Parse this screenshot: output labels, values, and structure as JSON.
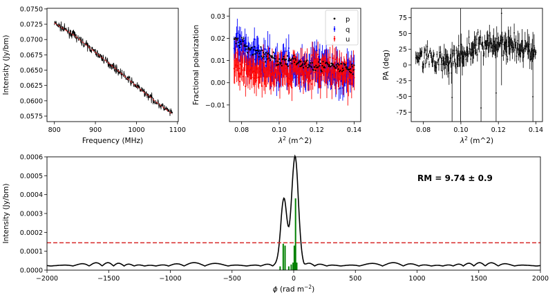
{
  "chart_data": [
    {
      "type": "line",
      "xlabel": "Frequency (MHz)",
      "ylabel": "Intensity (Jy/bm)",
      "xlim": [
        782,
        1102
      ],
      "ylim": [
        0.0566,
        0.0751
      ],
      "xticks": [
        800,
        900,
        1000,
        1100
      ],
      "yticks": [
        0.0575,
        0.06,
        0.0625,
        0.065,
        0.0675,
        0.07,
        0.0725,
        0.075
      ],
      "ytick_labels": [
        "0.0575",
        "0.0600",
        "0.0625",
        "0.0650",
        "0.0675",
        "0.0700",
        "0.0725",
        "0.0750"
      ],
      "series": [
        {
          "role": "data",
          "color": "#000000",
          "x_range": [
            800,
            1088
          ],
          "trend": [
            [
              800,
              0.0727
            ],
            [
              850,
              0.0706
            ],
            [
              900,
              0.0679
            ],
            [
              950,
              0.0652
            ],
            [
              1000,
              0.0624
            ],
            [
              1050,
              0.0597
            ],
            [
              1088,
              0.0578
            ]
          ],
          "noise": 0.0009
        },
        {
          "role": "model",
          "color": "#d62728",
          "dashed": true,
          "x": [
            800,
            850,
            900,
            950,
            1000,
            1050,
            1088
          ],
          "y": [
            0.0727,
            0.0706,
            0.0679,
            0.0652,
            0.0624,
            0.0597,
            0.0578
          ]
        }
      ]
    },
    {
      "type": "scatter",
      "xlabel": "λ² (m^2)",
      "ylabel": "Fractional polarization",
      "xlim": [
        0.0735,
        0.1435
      ],
      "ylim": [
        -0.0175,
        0.0335
      ],
      "xticks": [
        0.08,
        0.1,
        0.12,
        0.14
      ],
      "xtick_labels": [
        "0.08",
        "0.10",
        "0.12",
        "0.14"
      ],
      "yticks": [
        -0.01,
        0.0,
        0.01,
        0.02,
        0.03
      ],
      "ytick_labels": [
        "−0.01",
        "0.00",
        "0.01",
        "0.02",
        "0.03"
      ],
      "legend_position": "top-right",
      "series": [
        {
          "name": "p",
          "color": "#000000",
          "style": "dots",
          "x_range": [
            0.076,
            0.14
          ],
          "trend": [
            [
              0.076,
              0.02
            ],
            [
              0.085,
              0.015
            ],
            [
              0.1,
              0.01
            ],
            [
              0.12,
              0.008
            ],
            [
              0.14,
              0.006
            ]
          ],
          "noise": 0.004
        },
        {
          "name": "q",
          "color": "#0000ff",
          "style": "errorbar",
          "x_range": [
            0.076,
            0.14
          ],
          "trend": [
            [
              0.076,
              0.017
            ],
            [
              0.085,
              0.012
            ],
            [
              0.1,
              0.008
            ],
            [
              0.12,
              0.006
            ],
            [
              0.14,
              0.004
            ]
          ],
          "noise": 0.01
        },
        {
          "name": "u",
          "color": "#ff0000",
          "style": "errorbar",
          "x_range": [
            0.076,
            0.14
          ],
          "trend": [
            [
              0.076,
              0.007
            ],
            [
              0.085,
              0.005
            ],
            [
              0.1,
              0.005
            ],
            [
              0.12,
              0.006
            ],
            [
              0.14,
              0.003
            ]
          ],
          "noise": 0.009
        }
      ]
    },
    {
      "type": "scatter",
      "xlabel": "λ² (m^2)",
      "ylabel": "PA (deg)",
      "xlim": [
        0.0735,
        0.1435
      ],
      "ylim": [
        -90,
        90
      ],
      "xticks": [
        0.08,
        0.1,
        0.12,
        0.14
      ],
      "xtick_labels": [
        "0.08",
        "0.10",
        "0.12",
        "0.14"
      ],
      "yticks": [
        -75,
        -50,
        -25,
        0,
        25,
        50,
        75
      ],
      "series": [
        {
          "role": "data",
          "color": "#000000",
          "style": "errorbar",
          "x_range": [
            0.076,
            0.14
          ],
          "trend": [
            [
              0.076,
              15
            ],
            [
              0.085,
              8
            ],
            [
              0.095,
              5
            ],
            [
              0.105,
              25
            ],
            [
              0.115,
              35
            ],
            [
              0.125,
              30
            ],
            [
              0.14,
              20
            ]
          ],
          "noise": 18
        }
      ]
    },
    {
      "type": "line",
      "xlabel": "ϕ (rad m⁻²)",
      "ylabel": "Intensity (Jy/bm)",
      "xlim": [
        -2000,
        2000
      ],
      "ylim": [
        0,
        0.0006
      ],
      "xticks": [
        -2000,
        -1500,
        -1000,
        -500,
        0,
        500,
        1000,
        1500,
        2000
      ],
      "xtick_labels": [
        "−2000",
        "−1500",
        "−1000",
        "−500",
        "0",
        "500",
        "1000",
        "1500",
        "2000"
      ],
      "yticks": [
        0,
        0.0001,
        0.0002,
        0.0003,
        0.0004,
        0.0005,
        0.0006
      ],
      "ytick_labels": [
        "0.0000",
        "0.0001",
        "0.0002",
        "0.0003",
        "0.0004",
        "0.0005",
        "0.0006"
      ],
      "annotation": "RM = 9.74 ± 0.9",
      "threshold": 0.000145,
      "series": [
        {
          "role": "fdf",
          "color": "#000000",
          "peaks": [
            {
              "x": 10,
              "height": 0.000575,
              "width": 38
            },
            {
              "x": -80,
              "height": 0.000355,
              "width": 34
            }
          ],
          "sidelobe_level": 4e-05
        },
        {
          "role": "clean_components",
          "color": "#008000",
          "x": [
            -110,
            -85,
            -70,
            -40,
            -20,
            -5,
            5,
            15,
            25
          ],
          "y": [
            2e-05,
            0.00014,
            0.00013,
            2e-05,
            3e-05,
            4e-05,
            0.00013,
            0.00038,
            4e-05
          ]
        },
        {
          "role": "threshold",
          "color": "#d62728",
          "dashed": true,
          "y": 0.000145
        }
      ]
    }
  ]
}
